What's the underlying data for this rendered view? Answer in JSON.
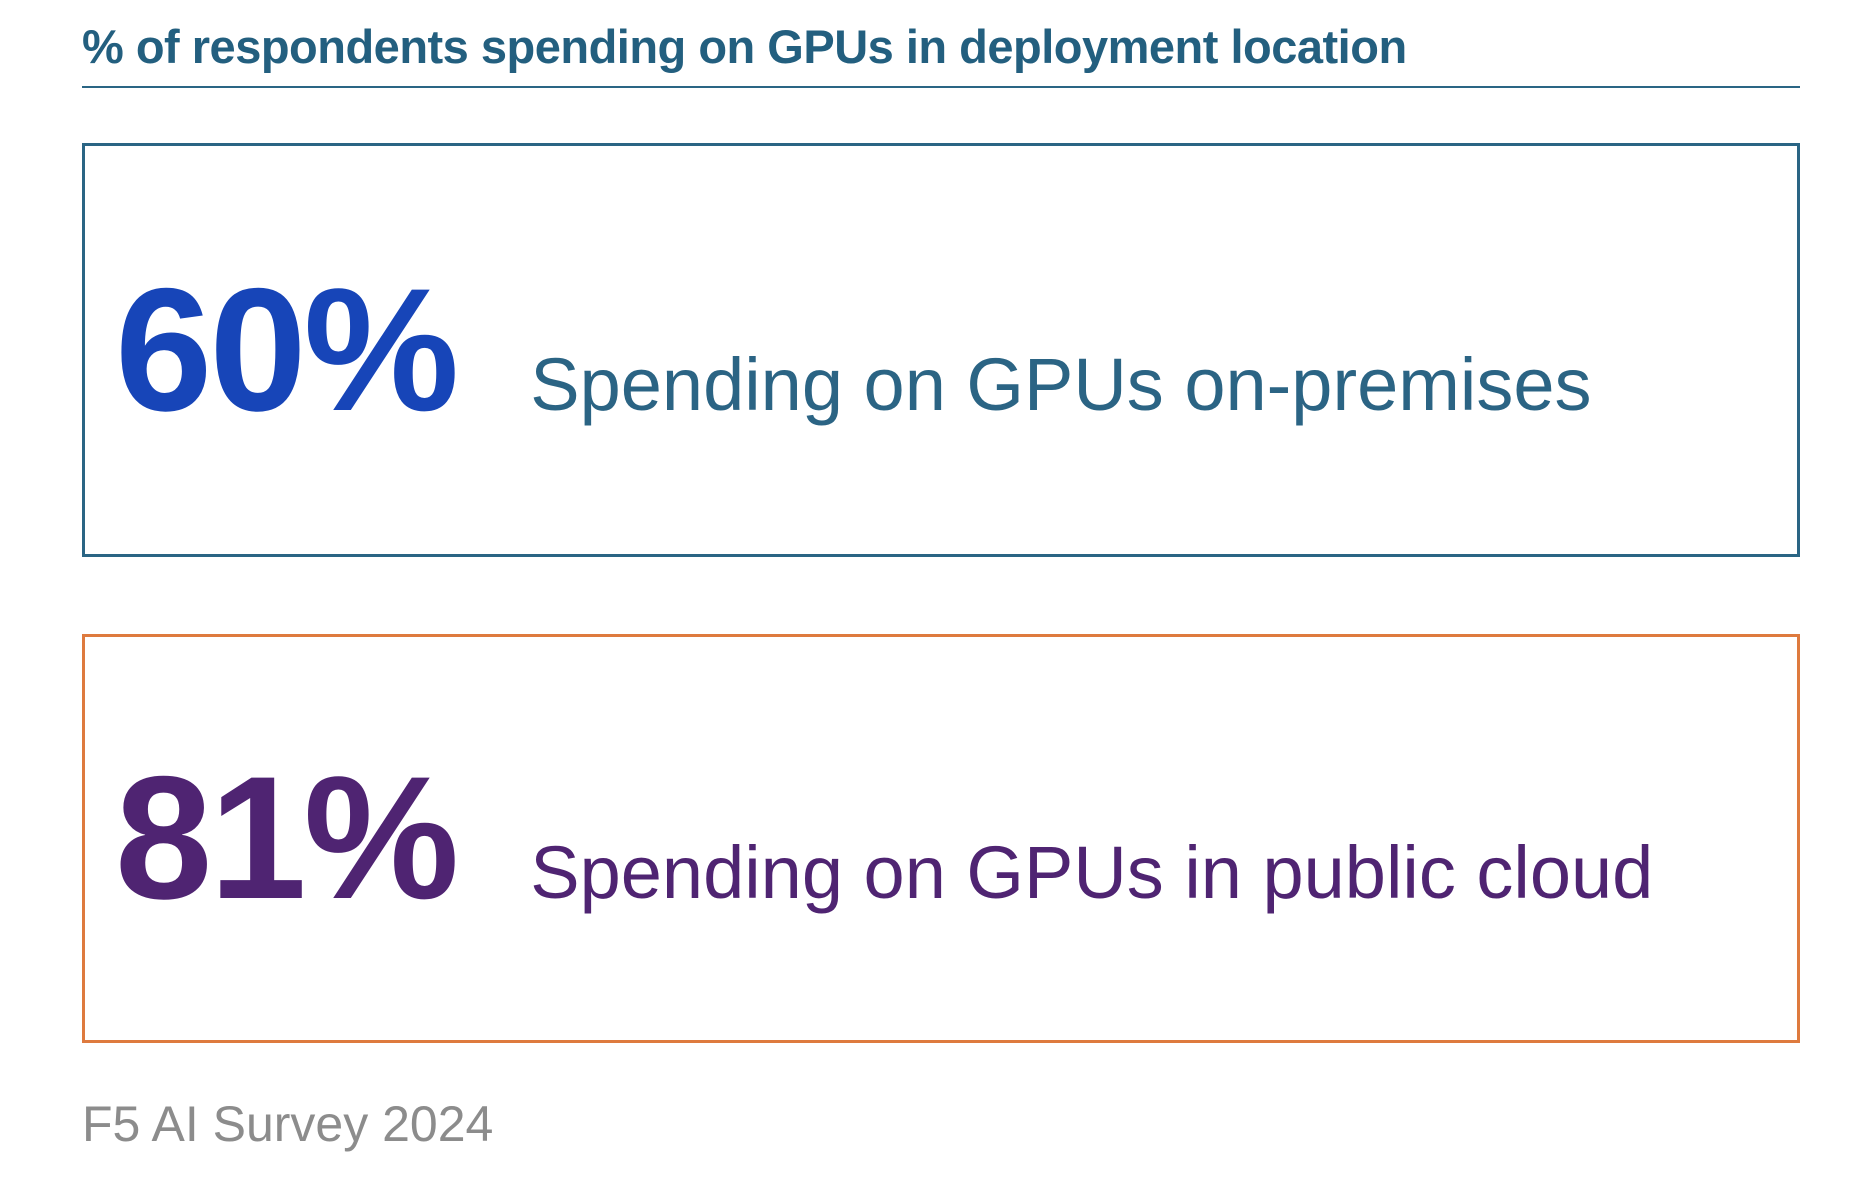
{
  "title": "% of respondents spending on GPUs in deployment location",
  "footer": {
    "source": "F5 AI Survey 2024"
  },
  "colors": {
    "teal_heading": "#235F7F",
    "teal_border": "#2A6584",
    "blue_value": "#1745B8",
    "purple_value": "#4F2472",
    "orange_border": "#DE7A3E",
    "gray_caption": "#8C8C8C",
    "background": "#FFFFFF"
  },
  "stats": [
    {
      "value": "60%",
      "label": "Spending on GPUs on-premises",
      "value_color": "#1745B8",
      "label_color": "#2B6484",
      "border_color": "#2A6584"
    },
    {
      "value": "81%",
      "label": "Spending on GPUs in public cloud",
      "value_color": "#4F2472",
      "label_color": "#4F2472",
      "border_color": "#DE7A3E"
    }
  ],
  "chart_data": {
    "type": "bar",
    "title": "% of respondents spending on GPUs in deployment location",
    "categories": [
      "Spending on GPUs on-premises",
      "Spending on GPUs in public cloud"
    ],
    "values": [
      60,
      81
    ],
    "unit": "%",
    "xlabel": "",
    "ylabel": "% of respondents",
    "ylim": [
      0,
      100
    ],
    "legend": false,
    "grid": false,
    "presentation": "stat-callout-cards",
    "source": "F5 AI Survey 2024"
  }
}
